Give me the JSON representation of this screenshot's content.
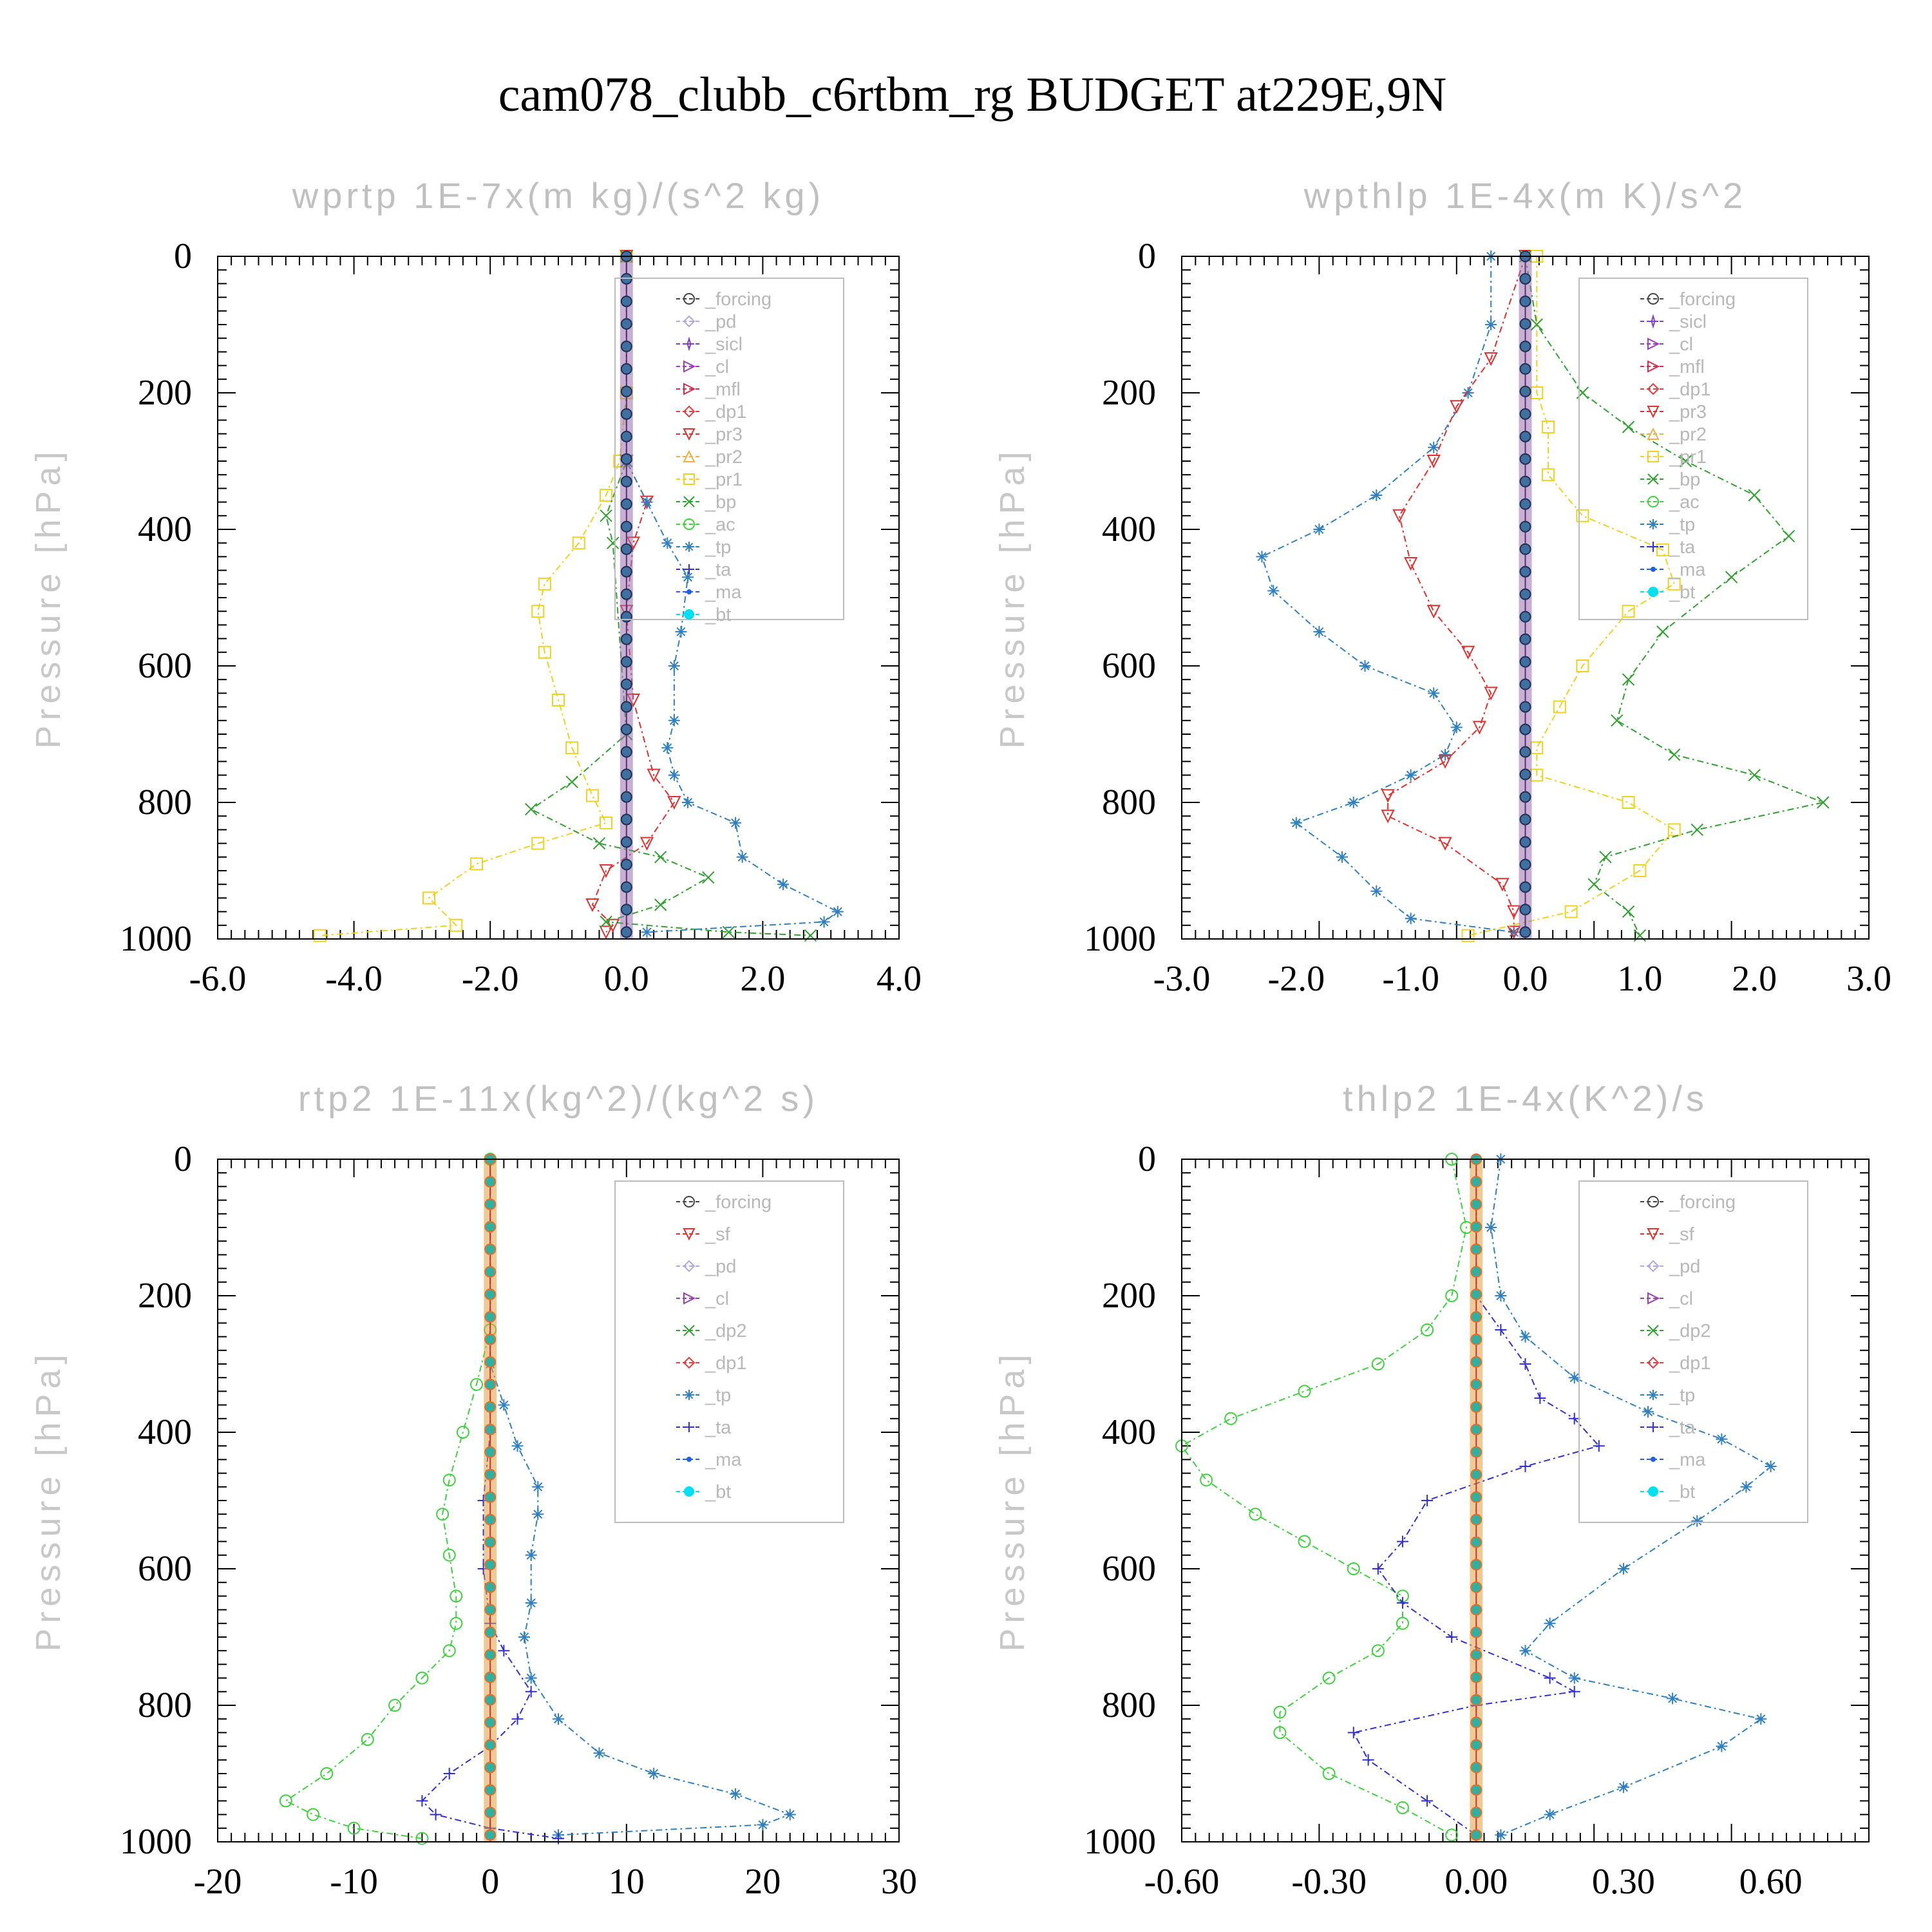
{
  "title": "cam078_clubb_c6rtbm_rg  BUDGET at229E,9N",
  "colors": {
    "forcing": "#444444",
    "pd": "#b0a8e0",
    "sicl": "#8040c0",
    "cl": "#9a40b0",
    "mfl": "#d03050",
    "dp1": "#e04040",
    "pr3": "#e03030",
    "pr2": "#f0b040",
    "pr1": "#f0d020",
    "bp": "#30a030",
    "ac": "#40d040",
    "tp": "#3080c0",
    "ta": "#3030d0",
    "ma": "#2060e0",
    "bt": "#00e0f0",
    "sf": "#e03030",
    "dp2": "#30a030"
  },
  "chart_data": [
    {
      "type": "line",
      "title": "wprtp  1E-7x(m kg)/(s^2 kg)",
      "ylabel": "Pressure [hPa]",
      "xlim": [
        -6.0,
        4.0
      ],
      "ylim": [
        0,
        1000
      ],
      "xticks": [
        "-6.0",
        "-4.0",
        "-2.0",
        "0.0",
        "2.0",
        "4.0"
      ],
      "yticks": [
        "0",
        "200",
        "400",
        "600",
        "800",
        "1000"
      ],
      "legend": [
        "_forcing",
        "_pd",
        "_sicl",
        "_cl",
        "_mfl",
        "_dp1",
        "_pr3",
        "_pr2",
        "_pr1",
        "_bp",
        "_ac",
        "_tp",
        "_ta",
        "_ma",
        "_bt"
      ],
      "series": [
        {
          "name": "_pr1",
          "color": "#f0d020",
          "marker": "square",
          "x": [
            0,
            0,
            -0.1,
            -0.3,
            -0.7,
            -1.2,
            -1.3,
            -1.2,
            -1.0,
            -0.8,
            -0.5,
            -0.3,
            -1.3,
            -2.2,
            -2.9,
            -2.5,
            -4.5
          ],
          "y": [
            0,
            200,
            300,
            350,
            420,
            480,
            520,
            580,
            650,
            720,
            790,
            830,
            860,
            890,
            940,
            980,
            995
          ]
        },
        {
          "name": "_pr3",
          "color": "#e03030",
          "marker": "triangle-down",
          "x": [
            0,
            0,
            0.3,
            0.1,
            0.0,
            0.1,
            0.4,
            0.7,
            0.3,
            -0.3,
            -0.5,
            -0.2,
            -0.3
          ],
          "y": [
            0,
            300,
            360,
            420,
            520,
            650,
            760,
            800,
            860,
            900,
            950,
            980,
            990
          ]
        },
        {
          "name": "_bp",
          "color": "#30a030",
          "marker": "x",
          "x": [
            0,
            0,
            -0.3,
            -0.2,
            0,
            -0.8,
            -1.4,
            -0.4,
            0.5,
            1.2,
            0.5,
            -0.3,
            1.5,
            2.7
          ],
          "y": [
            0,
            300,
            380,
            420,
            700,
            770,
            810,
            860,
            880,
            910,
            950,
            975,
            990,
            995
          ]
        },
        {
          "name": "_tp",
          "color": "#3080c0",
          "marker": "asterisk",
          "x": [
            0,
            0,
            0.3,
            0.6,
            0.9,
            0.8,
            0.7,
            0.7,
            0.6,
            0.7,
            0.9,
            1.6,
            1.7,
            2.3,
            3.1,
            2.9,
            0.3
          ],
          "y": [
            0,
            300,
            360,
            420,
            470,
            550,
            600,
            680,
            720,
            760,
            800,
            830,
            880,
            920,
            960,
            975,
            990
          ]
        },
        {
          "name": "_forcing",
          "color": "#444444",
          "marker": "circle",
          "x": [
            0,
            0
          ],
          "y": [
            0,
            1000
          ]
        }
      ]
    },
    {
      "type": "line",
      "title": "wpthlp  1E-4x(m K)/s^2",
      "ylabel": "Pressure [hPa]",
      "xlim": [
        -3.0,
        3.0
      ],
      "ylim": [
        0,
        1000
      ],
      "xticks": [
        "-3.0",
        "-2.0",
        "-1.0",
        "0.0",
        "1.0",
        "2.0",
        "3.0"
      ],
      "yticks": [
        "0",
        "200",
        "400",
        "600",
        "800",
        "1000"
      ],
      "legend": [
        "_forcing",
        "_sicl",
        "_cl",
        "_mfl",
        "_dp1",
        "_pr3",
        "_pr2",
        "_pr1",
        "_bp",
        "_ac",
        "_tp",
        "_ta",
        "_ma",
        "_bt"
      ],
      "series": [
        {
          "name": "_tp",
          "color": "#3080c0",
          "marker": "asterisk",
          "x": [
            -0.3,
            -0.3,
            -0.5,
            -0.8,
            -1.3,
            -1.8,
            -2.3,
            -2.2,
            -1.8,
            -1.4,
            -0.8,
            -0.6,
            -0.7,
            -1.0,
            -1.5,
            -2.0,
            -1.6,
            -1.3,
            -1.0,
            -0.1
          ],
          "y": [
            0,
            100,
            200,
            280,
            350,
            400,
            440,
            490,
            550,
            600,
            640,
            690,
            730,
            760,
            800,
            830,
            880,
            930,
            970,
            990
          ]
        },
        {
          "name": "_pr3",
          "color": "#e03030",
          "marker": "triangle-down",
          "x": [
            0,
            -0.3,
            -0.6,
            -0.8,
            -1.1,
            -1.0,
            -0.8,
            -0.5,
            -0.3,
            -0.4,
            -0.7,
            -1.2,
            -1.2,
            -0.7,
            -0.2,
            -0.1,
            -0.1
          ],
          "y": [
            0,
            150,
            220,
            300,
            380,
            450,
            520,
            580,
            640,
            690,
            740,
            790,
            820,
            860,
            920,
            960,
            990
          ]
        },
        {
          "name": "_pr1",
          "color": "#f0d020",
          "marker": "square",
          "x": [
            0.1,
            0.1,
            0.2,
            0.2,
            0.5,
            1.2,
            1.3,
            0.9,
            0.5,
            0.3,
            0.1,
            0.1,
            0.9,
            1.3,
            1.0,
            0.4,
            -0.5
          ],
          "y": [
            0,
            200,
            250,
            320,
            380,
            430,
            480,
            520,
            600,
            660,
            720,
            760,
            800,
            840,
            900,
            960,
            995
          ]
        },
        {
          "name": "_bp",
          "color": "#30a030",
          "marker": "x",
          "x": [
            0,
            0.1,
            0.5,
            0.9,
            1.4,
            2.0,
            2.3,
            1.8,
            1.2,
            0.9,
            0.8,
            1.3,
            2.0,
            2.6,
            1.5,
            0.7,
            0.6,
            0.9,
            1.0
          ],
          "y": [
            0,
            100,
            200,
            250,
            300,
            350,
            410,
            470,
            550,
            620,
            680,
            730,
            760,
            800,
            840,
            880,
            920,
            960,
            995
          ]
        },
        {
          "name": "_forcing",
          "color": "#444444",
          "marker": "circle",
          "x": [
            0,
            0
          ],
          "y": [
            0,
            1000
          ]
        }
      ]
    },
    {
      "type": "line",
      "title": "rtp2  1E-11x(kg^2)/(kg^2 s)",
      "ylabel": "Pressure [hPa]",
      "xlim": [
        -20,
        30
      ],
      "ylim": [
        0,
        1000
      ],
      "xticks": [
        "-20",
        "-10",
        "0",
        "10",
        "20",
        "30"
      ],
      "yticks": [
        "0",
        "200",
        "400",
        "600",
        "800",
        "1000"
      ],
      "legend": [
        "_forcing",
        "_sf",
        "_pd",
        "_cl",
        "_dp2",
        "_dp1",
        "_tp",
        "_ta",
        "_ma",
        "_bt"
      ],
      "series": [
        {
          "name": "_dp1",
          "color": "#40d040",
          "marker": "circle",
          "x": [
            0,
            0,
            -1,
            -2,
            -3,
            -3.5,
            -3,
            -2.5,
            -2.5,
            -3,
            -5,
            -7,
            -9,
            -12,
            -15,
            -13,
            -10,
            -5
          ],
          "y": [
            0,
            250,
            330,
            400,
            470,
            520,
            580,
            640,
            680,
            720,
            760,
            800,
            850,
            900,
            940,
            960,
            980,
            995
          ]
        },
        {
          "name": "_tp",
          "color": "#3080c0",
          "marker": "asterisk",
          "x": [
            0,
            0,
            1,
            2,
            3.5,
            3.5,
            3,
            3,
            2.5,
            3,
            5,
            8,
            12,
            18,
            22,
            20,
            5
          ],
          "y": [
            0,
            300,
            360,
            420,
            480,
            520,
            580,
            650,
            700,
            760,
            820,
            870,
            900,
            930,
            960,
            975,
            990
          ]
        },
        {
          "name": "_ta",
          "color": "#3030d0",
          "marker": "plus",
          "x": [
            0,
            0,
            -0.5,
            -0.5,
            0,
            1,
            3,
            2,
            0,
            -3,
            -5,
            -4,
            0,
            5
          ],
          "y": [
            0,
            400,
            500,
            600,
            680,
            720,
            780,
            820,
            860,
            900,
            940,
            960,
            980,
            995
          ]
        },
        {
          "name": "_forcing",
          "color": "#e04040",
          "marker": "diamond",
          "x": [
            0,
            0
          ],
          "y": [
            0,
            1000
          ]
        }
      ]
    },
    {
      "type": "line",
      "title": "thlp2  1E-4x(K^2)/s",
      "ylabel": "Pressure [hPa]",
      "xlim": [
        -0.6,
        0.8
      ],
      "ylim": [
        0,
        1000
      ],
      "xticks": [
        "-0.60",
        "-0.30",
        "0.00",
        "0.30",
        "0.60"
      ],
      "yticks": [
        "0",
        "200",
        "400",
        "600",
        "800",
        "1000"
      ],
      "legend": [
        "_forcing",
        "_sf",
        "_pd",
        "_cl",
        "_dp2",
        "_dp1",
        "_tp",
        "_ta",
        "_ma",
        "_bt"
      ],
      "series": [
        {
          "name": "_dp1",
          "color": "#40d040",
          "marker": "circle",
          "x": [
            -0.05,
            -0.02,
            -0.05,
            -0.1,
            -0.2,
            -0.35,
            -0.5,
            -0.6,
            -0.55,
            -0.45,
            -0.35,
            -0.25,
            -0.15,
            -0.15,
            -0.2,
            -0.3,
            -0.4,
            -0.4,
            -0.3,
            -0.15,
            -0.05
          ],
          "y": [
            0,
            100,
            200,
            250,
            300,
            340,
            380,
            420,
            470,
            520,
            560,
            600,
            640,
            680,
            720,
            760,
            810,
            840,
            900,
            950,
            990
          ]
        },
        {
          "name": "_tp",
          "color": "#3080c0",
          "marker": "asterisk",
          "x": [
            0.05,
            0.03,
            0.05,
            0.1,
            0.2,
            0.35,
            0.5,
            0.6,
            0.55,
            0.45,
            0.3,
            0.15,
            0.1,
            0.2,
            0.4,
            0.58,
            0.5,
            0.3,
            0.15,
            0.05
          ],
          "y": [
            0,
            100,
            200,
            260,
            320,
            370,
            410,
            450,
            480,
            530,
            600,
            680,
            720,
            760,
            790,
            820,
            860,
            920,
            960,
            990
          ]
        },
        {
          "name": "_ta",
          "color": "#3030d0",
          "marker": "plus",
          "x": [
            0,
            0,
            0.05,
            0.1,
            0.13,
            0.2,
            0.25,
            0.1,
            -0.1,
            -0.15,
            -0.2,
            -0.15,
            -0.05,
            0.15,
            0.2,
            0.0,
            -0.25,
            -0.22,
            -0.1,
            0
          ],
          "y": [
            0,
            200,
            250,
            300,
            350,
            380,
            420,
            450,
            500,
            560,
            600,
            650,
            700,
            760,
            780,
            800,
            840,
            880,
            940,
            990
          ]
        },
        {
          "name": "_forcing",
          "color": "#e04040",
          "marker": "diamond",
          "x": [
            0,
            0
          ],
          "y": [
            0,
            1000
          ]
        }
      ]
    }
  ]
}
